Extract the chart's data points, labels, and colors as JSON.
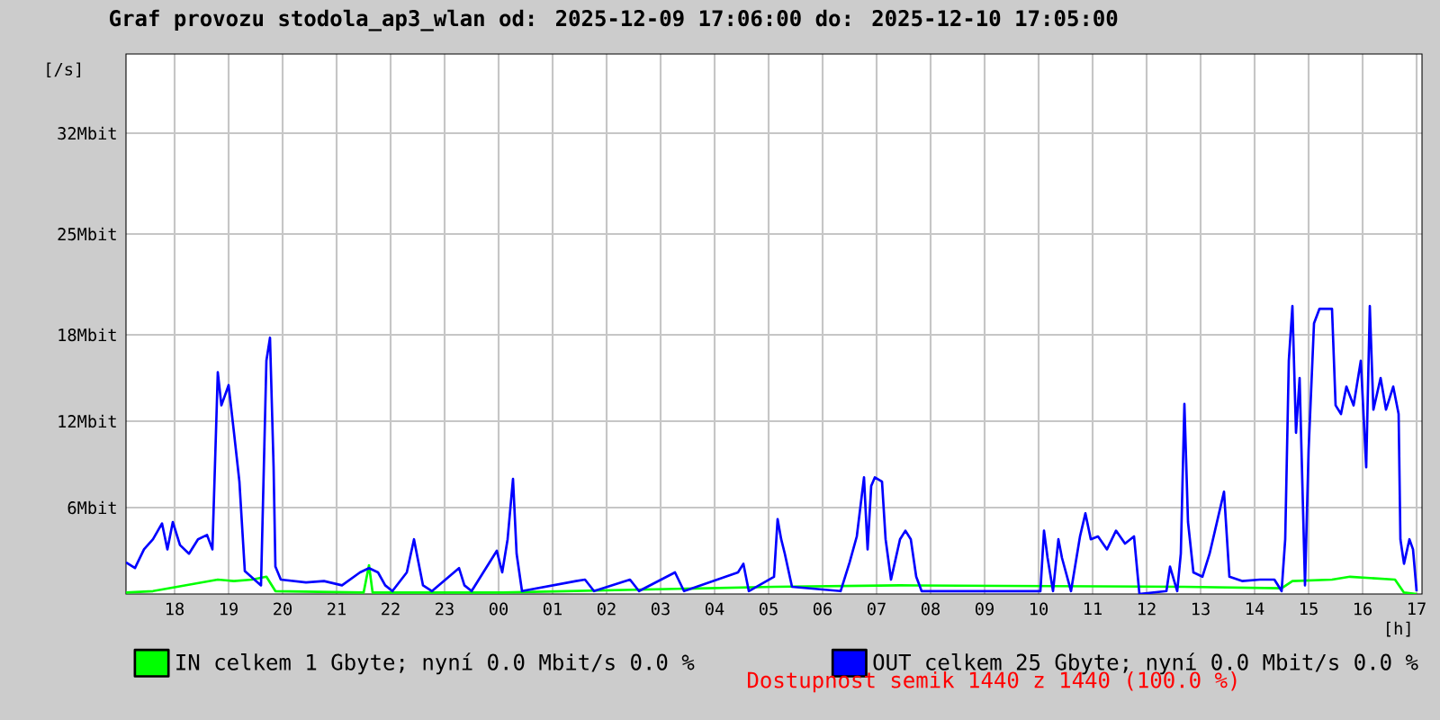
{
  "chart_data": {
    "type": "line",
    "title": "Graf provozu stodola_ap3_wlan od: 2025-12-09 17:06:00 do: 2025-12-10 17:05:00",
    "xlabel": "[h]",
    "ylabel": "[/s]",
    "xlim": [
      "2025-12-09T17:06",
      "2025-12-10T17:06"
    ],
    "ylim": [
      0,
      37.5
    ],
    "xticks": [
      {
        "value": "2025-12-09T18:00",
        "label": "18"
      },
      {
        "value": "2025-12-09T19:00",
        "label": "19"
      },
      {
        "value": "2025-12-09T20:00",
        "label": "20"
      },
      {
        "value": "2025-12-09T21:00",
        "label": "21"
      },
      {
        "value": "2025-12-09T22:00",
        "label": "22"
      },
      {
        "value": "2025-12-09T23:00",
        "label": "23"
      },
      {
        "value": "2025-12-10T00:00",
        "label": "00"
      },
      {
        "value": "2025-12-10T01:00",
        "label": "01"
      },
      {
        "value": "2025-12-10T02:00",
        "label": "02"
      },
      {
        "value": "2025-12-10T03:00",
        "label": "03"
      },
      {
        "value": "2025-12-10T04:00",
        "label": "04"
      },
      {
        "value": "2025-12-10T05:00",
        "label": "05"
      },
      {
        "value": "2025-12-10T06:00",
        "label": "06"
      },
      {
        "value": "2025-12-10T07:00",
        "label": "07"
      },
      {
        "value": "2025-12-10T08:00",
        "label": "08"
      },
      {
        "value": "2025-12-10T09:00",
        "label": "09"
      },
      {
        "value": "2025-12-10T10:00",
        "label": "10"
      },
      {
        "value": "2025-12-10T11:00",
        "label": "11"
      },
      {
        "value": "2025-12-10T12:00",
        "label": "12"
      },
      {
        "value": "2025-12-10T13:00",
        "label": "13"
      },
      {
        "value": "2025-12-10T14:00",
        "label": "14"
      },
      {
        "value": "2025-12-10T15:00",
        "label": "15"
      },
      {
        "value": "2025-12-10T16:00",
        "label": "16"
      },
      {
        "value": "2025-12-10T17:00",
        "label": "17"
      }
    ],
    "yticks": [
      {
        "value": 6,
        "label": "6Mbit"
      },
      {
        "value": 12,
        "label": "12Mbit"
      },
      {
        "value": 18,
        "label": "18Mbit"
      },
      {
        "value": 25,
        "label": "25Mbit"
      },
      {
        "value": 32,
        "label": "32Mbit"
      }
    ],
    "grid": true,
    "legend": "bottom",
    "marker": "none",
    "line_style": "solid",
    "series": [
      {
        "name": "IN celkem 1 Gbyte; nyní   0.0 Mbit/s 0.0 %",
        "color": "#00ff00",
        "x": [
          "2025-12-09T17:06",
          "2025-12-09T17:36",
          "2025-12-09T18:48",
          "2025-12-09T19:06",
          "2025-12-09T19:26",
          "2025-12-09T19:42",
          "2025-12-09T19:52",
          "2025-12-09T21:30",
          "2025-12-09T21:36",
          "2025-12-09T21:40",
          "2025-12-10T00:04",
          "2025-12-10T05:06",
          "2025-12-10T07:26",
          "2025-12-10T12:42",
          "2025-12-10T14:30",
          "2025-12-10T14:42",
          "2025-12-10T15:26",
          "2025-12-10T15:46",
          "2025-12-10T16:36",
          "2025-12-10T16:46",
          "2025-12-10T17:00"
        ],
        "values": [
          0.1,
          0.2,
          1.0,
          0.9,
          1.0,
          1.2,
          0.2,
          0.1,
          2.0,
          0.1,
          0.1,
          0.5,
          0.6,
          0.5,
          0.4,
          0.9,
          1.0,
          1.2,
          1.0,
          0.1,
          0
        ]
      },
      {
        "name": "OUT celkem 25 Gbyte; nyní   0.0 Mbit/s 0.0 %",
        "color": "#0000ff",
        "x": [
          "2025-12-09T17:06",
          "2025-12-09T17:16",
          "2025-12-09T17:26",
          "2025-12-09T17:36",
          "2025-12-09T17:46",
          "2025-12-09T17:52",
          "2025-12-09T17:58",
          "2025-12-09T18:06",
          "2025-12-09T18:16",
          "2025-12-09T18:26",
          "2025-12-09T18:36",
          "2025-12-09T18:42",
          "2025-12-09T18:48",
          "2025-12-09T18:52",
          "2025-12-09T19:00",
          "2025-12-09T19:06",
          "2025-12-09T19:12",
          "2025-12-09T19:18",
          "2025-12-09T19:36",
          "2025-12-09T19:42",
          "2025-12-09T19:46",
          "2025-12-09T19:50",
          "2025-12-09T19:52",
          "2025-12-09T19:58",
          "2025-12-09T20:26",
          "2025-12-09T20:46",
          "2025-12-09T21:06",
          "2025-12-09T21:26",
          "2025-12-09T21:36",
          "2025-12-09T21:46",
          "2025-12-09T21:54",
          "2025-12-09T22:02",
          "2025-12-09T22:18",
          "2025-12-09T22:26",
          "2025-12-09T22:30",
          "2025-12-09T22:36",
          "2025-12-09T22:46",
          "2025-12-09T23:16",
          "2025-12-09T23:22",
          "2025-12-09T23:30",
          "2025-12-09T23:58",
          "2025-12-10T00:04",
          "2025-12-10T00:10",
          "2025-12-10T00:16",
          "2025-12-10T00:20",
          "2025-12-10T00:26",
          "2025-12-10T01:26",
          "2025-12-10T01:36",
          "2025-12-10T01:46",
          "2025-12-10T02:26",
          "2025-12-10T02:36",
          "2025-12-10T03:16",
          "2025-12-10T03:26",
          "2025-12-10T04:26",
          "2025-12-10T04:32",
          "2025-12-10T04:38",
          "2025-12-10T05:06",
          "2025-12-10T05:10",
          "2025-12-10T05:14",
          "2025-12-10T05:18",
          "2025-12-10T05:26",
          "2025-12-10T06:20",
          "2025-12-10T06:30",
          "2025-12-10T06:38",
          "2025-12-10T06:46",
          "2025-12-10T06:50",
          "2025-12-10T06:54",
          "2025-12-10T06:58",
          "2025-12-10T07:06",
          "2025-12-10T07:10",
          "2025-12-10T07:16",
          "2025-12-10T07:26",
          "2025-12-10T07:32",
          "2025-12-10T07:38",
          "2025-12-10T07:44",
          "2025-12-10T07:50",
          "2025-12-10T10:02",
          "2025-12-10T10:06",
          "2025-12-10T10:10",
          "2025-12-10T10:16",
          "2025-12-10T10:22",
          "2025-12-10T10:26",
          "2025-12-10T10:36",
          "2025-12-10T10:46",
          "2025-12-10T10:52",
          "2025-12-10T10:58",
          "2025-12-10T11:06",
          "2025-12-10T11:16",
          "2025-12-10T11:26",
          "2025-12-10T11:36",
          "2025-12-10T11:46",
          "2025-12-10T11:52",
          "2025-12-10T12:22",
          "2025-12-10T12:26",
          "2025-12-10T12:34",
          "2025-12-10T12:38",
          "2025-12-10T12:42",
          "2025-12-10T12:46",
          "2025-12-10T12:52",
          "2025-12-10T13:02",
          "2025-12-10T13:10",
          "2025-12-10T13:26",
          "2025-12-10T13:32",
          "2025-12-10T13:46",
          "2025-12-10T14:06",
          "2025-12-10T14:22",
          "2025-12-10T14:30",
          "2025-12-10T14:34",
          "2025-12-10T14:38",
          "2025-12-10T14:42",
          "2025-12-10T14:46",
          "2025-12-10T14:50",
          "2025-12-10T14:56",
          "2025-12-10T15:00",
          "2025-12-10T15:06",
          "2025-12-10T15:12",
          "2025-12-10T15:26",
          "2025-12-10T15:30",
          "2025-12-10T15:36",
          "2025-12-10T15:42",
          "2025-12-10T15:50",
          "2025-12-10T15:58",
          "2025-12-10T16:04",
          "2025-12-10T16:08",
          "2025-12-10T16:12",
          "2025-12-10T16:20",
          "2025-12-10T16:26",
          "2025-12-10T16:34",
          "2025-12-10T16:40",
          "2025-12-10T16:42",
          "2025-12-10T16:46",
          "2025-12-10T16:52",
          "2025-12-10T16:56",
          "2025-12-10T17:00"
        ],
        "values": [
          2.2,
          1.8,
          3.1,
          3.8,
          4.9,
          3.1,
          5.0,
          3.4,
          2.8,
          3.8,
          4.1,
          3.1,
          15.4,
          13.1,
          14.5,
          11.2,
          7.8,
          1.6,
          0.6,
          16.2,
          17.8,
          8.8,
          1.9,
          1.0,
          0.8,
          0.9,
          0.6,
          1.5,
          1.8,
          1.5,
          0.6,
          0.2,
          1.5,
          3.8,
          2.5,
          0.6,
          0.2,
          1.8,
          0.6,
          0.2,
          3.0,
          1.5,
          3.8,
          8.0,
          2.8,
          0.2,
          0.9,
          1.0,
          0.2,
          1.0,
          0.2,
          1.5,
          0.2,
          1.5,
          2.1,
          0.2,
          1.2,
          5.2,
          3.8,
          2.8,
          0.5,
          0.2,
          2.2,
          4.0,
          8.1,
          3.1,
          7.5,
          8.1,
          7.8,
          3.8,
          1.0,
          3.8,
          4.4,
          3.8,
          1.2,
          0.2,
          0.2,
          4.4,
          2.5,
          0.2,
          3.8,
          2.5,
          0.2,
          4.0,
          5.6,
          3.8,
          4.0,
          3.1,
          4.4,
          3.5,
          4.0,
          0,
          0.2,
          1.9,
          0.2,
          2.8,
          13.2,
          5.0,
          1.5,
          1.2,
          2.8,
          7.1,
          1.2,
          0.9,
          1.0,
          1.0,
          0.2,
          3.8,
          16.2,
          20.0,
          11.2,
          15.0,
          0.6,
          10.0,
          18.8,
          19.8,
          19.8,
          13.1,
          12.5,
          14.4,
          13.1,
          16.2,
          8.8,
          20.0,
          12.8,
          15.0,
          12.8,
          14.4,
          12.5,
          3.8,
          2.1,
          3.8,
          3.1,
          0.2
        ]
      }
    ],
    "annotations": [
      "Dostupnost semik 1440 z 1440 (100.0 %)"
    ]
  }
}
